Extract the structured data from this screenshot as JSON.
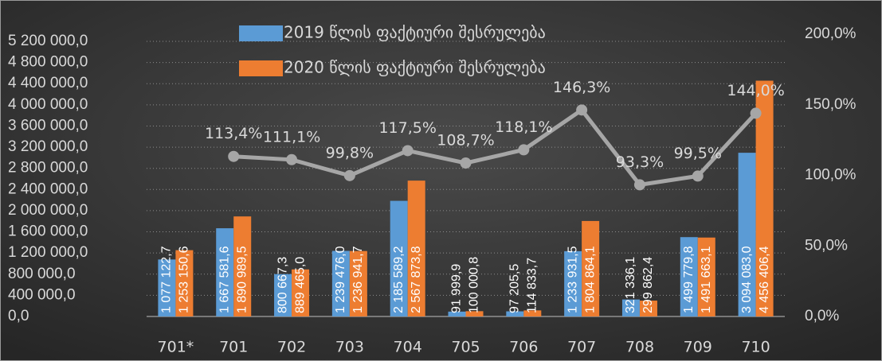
{
  "chart_data": {
    "type": "bar",
    "categories": [
      "701*",
      "701",
      "702",
      "703",
      "704",
      "705",
      "706",
      "707",
      "708",
      "709",
      "710"
    ],
    "series": [
      {
        "name": "2019 წლის ფაქტიური შესრულება",
        "color": "#5b9bd5",
        "values": [
          1077122.7,
          1667581.6,
          800667.3,
          1239476.0,
          2185589.2,
          91999.9,
          97205.5,
          1233931.5,
          321336.1,
          1499779.8,
          3094083.0
        ],
        "value_labels": [
          "1 077 122,7",
          "1 667 581,6",
          "800 667,3",
          "1 239 476,0",
          "2 185 589,2",
          "91 999,9",
          "97 205,5",
          "1 233 931,5",
          "321 336,1",
          "1 499 779,8",
          "3 094 083,0"
        ]
      },
      {
        "name": "2020 წლის ფაქტიური შესრულება",
        "color": "#ed7d31",
        "values": [
          1253150.6,
          1890989.5,
          889465.0,
          1236941.7,
          2567873.8,
          100000.8,
          114833.7,
          1804864.1,
          299862.4,
          1491663.1,
          4456406.4
        ],
        "value_labels": [
          "1 253 150,6",
          "1 890 989,5",
          "889 465,0",
          "1 236 941,7",
          "2 567 873,8",
          "100 000,8",
          "114 833,7",
          "1 804 864,1",
          "299 862,4",
          "1 491 663,1",
          "4 456 406,4"
        ]
      },
      {
        "type": "line",
        "axis": "y2",
        "color": "#a6a6a6",
        "values": [
          null,
          113.4,
          111.1,
          99.8,
          117.5,
          108.7,
          118.1,
          146.3,
          93.3,
          99.5,
          144.0
        ],
        "value_labels": [
          null,
          "113,4%",
          "111,1%",
          "99,8%",
          "117,5%",
          "108,7%",
          "118,1%",
          "146,3%",
          "93,3%",
          "99,5%",
          "144,0%"
        ]
      }
    ],
    "ylim": [
      0,
      5200000
    ],
    "yticks": [
      {
        "value": 0,
        "label": "0,0"
      },
      {
        "value": 400000,
        "label": "400 000,0"
      },
      {
        "value": 800000,
        "label": "800 000,0"
      },
      {
        "value": 1200000,
        "label": "1 200 000,0"
      },
      {
        "value": 1600000,
        "label": "1 600 000,0"
      },
      {
        "value": 2000000,
        "label": "2 000 000,0"
      },
      {
        "value": 2400000,
        "label": "2 400 000,0"
      },
      {
        "value": 2800000,
        "label": "2 800 000,0"
      },
      {
        "value": 3200000,
        "label": "3 200 000,0"
      },
      {
        "value": 3600000,
        "label": "3 600 000,0"
      },
      {
        "value": 4000000,
        "label": "4 000 000,0"
      },
      {
        "value": 4400000,
        "label": "4 400 000,0"
      },
      {
        "value": 4800000,
        "label": "4 800 000,0"
      },
      {
        "value": 5200000,
        "label": "5 200 000,0"
      }
    ],
    "y2lim": [
      0,
      200
    ],
    "y2ticks": [
      {
        "value": 0,
        "label": "0,0%"
      },
      {
        "value": 50,
        "label": "50,0%"
      },
      {
        "value": 100,
        "label": "100,0%"
      },
      {
        "value": 150,
        "label": "150,0%"
      },
      {
        "value": 200,
        "label": "200,0%"
      }
    ],
    "grid": true,
    "legend": "top"
  }
}
